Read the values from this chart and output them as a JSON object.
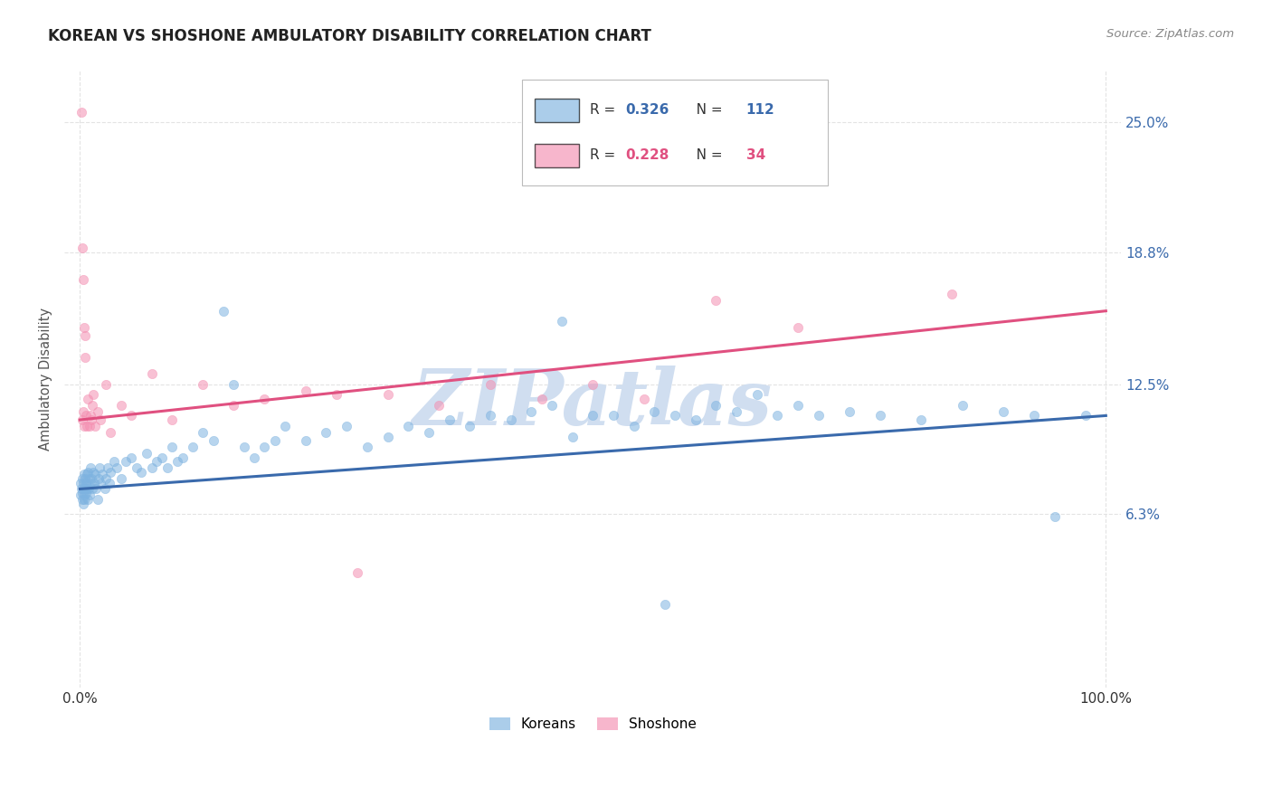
{
  "title": "KOREAN VS SHOSHONE AMBULATORY DISABILITY CORRELATION CHART",
  "source": "Source: ZipAtlas.com",
  "ylabel": "Ambulatory Disability",
  "ytick_labels": [
    "6.3%",
    "12.5%",
    "18.8%",
    "25.0%"
  ],
  "ytick_values": [
    6.3,
    12.5,
    18.8,
    25.0
  ],
  "korean_color": "#7EB3E0",
  "shoshone_color": "#F48FB1",
  "korean_line_color": "#3A6AAC",
  "shoshone_line_color": "#E05080",
  "watermark": "ZIPatlas",
  "watermark_color": "#D0DEF0",
  "background_color": "#FFFFFF",
  "legend_korean_r": "0.326",
  "legend_korean_n": "112",
  "legend_shoshone_r": "0.228",
  "legend_shoshone_n": "34",
  "legend_r_color_korean": "#3A6AAC",
  "legend_r_color_shoshone": "#E05080",
  "legend_n_color_korean": "#3A6AAC",
  "legend_n_color_shoshone": "#E05080",
  "grid_color": "#E0E0E0",
  "title_color": "#222222",
  "source_color": "#888888",
  "tick_color": "#3A6AAC"
}
